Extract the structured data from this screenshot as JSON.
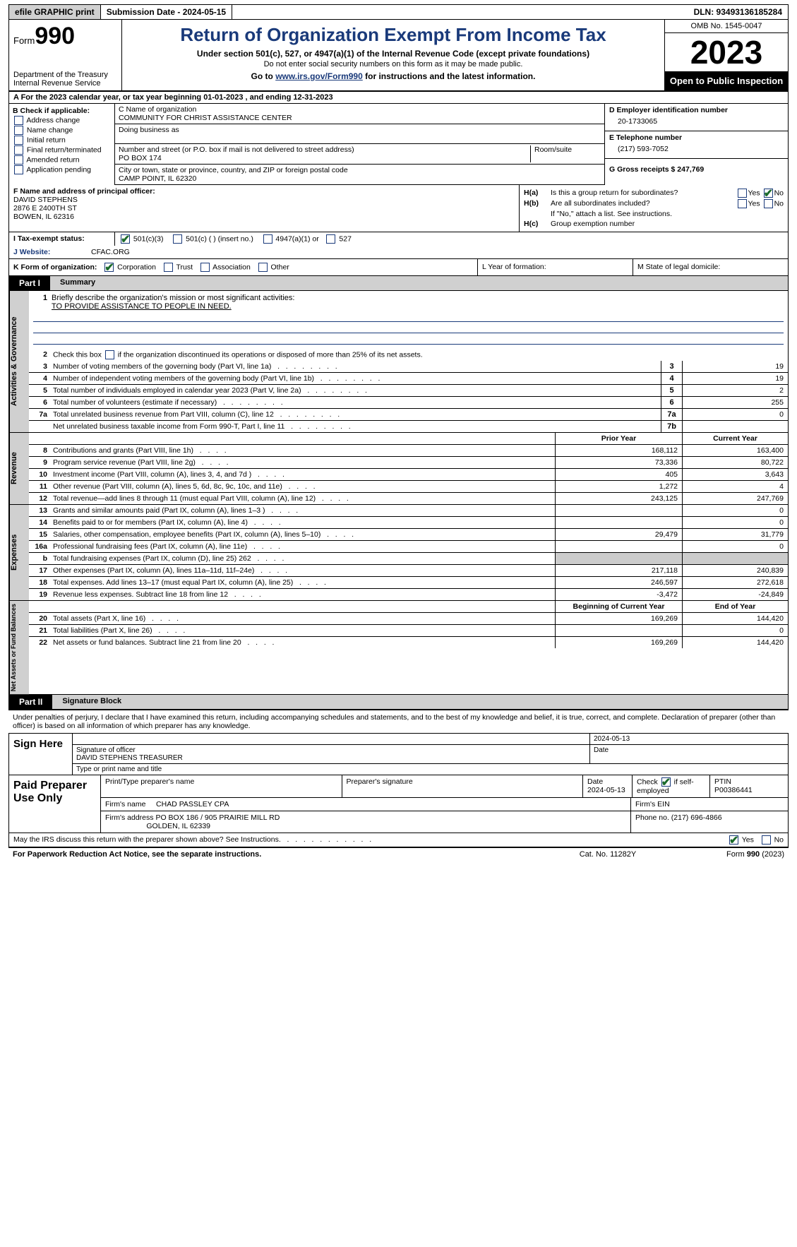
{
  "top": {
    "efile": "efile GRAPHIC print",
    "submission": "Submission Date - 2024-05-15",
    "dln": "DLN: 93493136185284"
  },
  "header": {
    "form_word": "Form",
    "form_num": "990",
    "title": "Return of Organization Exempt From Income Tax",
    "subtitle1": "Under section 501(c), 527, or 4947(a)(1) of the Internal Revenue Code (except private foundations)",
    "subtitle2": "Do not enter social security numbers on this form as it may be made public.",
    "subtitle3_a": "Go to ",
    "subtitle3_link": "www.irs.gov/Form990",
    "subtitle3_b": " for instructions and the latest information.",
    "dept": "Department of the Treasury",
    "irs": "Internal Revenue Service",
    "omb": "OMB No. 1545-0047",
    "year": "2023",
    "open": "Open to Public Inspection"
  },
  "lineA": "A For the 2023 calendar year, or tax year beginning 01-01-2023   , and ending 12-31-2023",
  "B": {
    "label": "B Check if applicable:",
    "items": [
      "Address change",
      "Name change",
      "Initial return",
      "Final return/terminated",
      "Amended return",
      "Application pending"
    ]
  },
  "C": {
    "name_lbl": "C Name of organization",
    "name": "COMMUNITY FOR CHRIST ASSISTANCE CENTER",
    "dba_lbl": "Doing business as",
    "addr_lbl": "Number and street (or P.O. box if mail is not delivered to street address)",
    "addr": "PO BOX 174",
    "suite_lbl": "Room/suite",
    "city_lbl": "City or town, state or province, country, and ZIP or foreign postal code",
    "city": "CAMP POINT, IL  62320"
  },
  "D": {
    "lbl": "D Employer identification number",
    "val": "20-1733065"
  },
  "E": {
    "lbl": "E Telephone number",
    "val": "(217) 593-7052"
  },
  "G": {
    "lbl": "G Gross receipts $ 247,769"
  },
  "F": {
    "lbl": "F  Name and address of principal officer:",
    "name": "DAVID STEPHENS",
    "addr1": "2876 E 2400TH ST",
    "addr2": "BOWEN, IL  62316"
  },
  "H": {
    "a_lbl": "H(a)",
    "a_txt": "Is this a group return for subordinates?",
    "b_lbl": "H(b)",
    "b_txt": "Are all subordinates included?",
    "b_note": "If \"No,\" attach a list. See instructions.",
    "c_lbl": "H(c)",
    "c_txt": "Group exemption number",
    "yes": "Yes",
    "no": "No"
  },
  "I": {
    "lbl": "I   Tax-exempt status:",
    "opts": [
      "501(c)(3)",
      "501(c) (  ) (insert no.)",
      "4947(a)(1) or",
      "527"
    ]
  },
  "J": {
    "lbl": "J   Website:",
    "val": "CFAC.ORG"
  },
  "K": {
    "lbl": "K Form of organization:",
    "opts": [
      "Corporation",
      "Trust",
      "Association",
      "Other"
    ]
  },
  "L": "L Year of formation:",
  "M": "M State of legal domicile:",
  "part1": {
    "num": "Part I",
    "title": "Summary"
  },
  "vtabs": {
    "ag": "Activities & Governance",
    "rev": "Revenue",
    "exp": "Expenses",
    "na": "Net Assets or Fund Balances"
  },
  "q1": {
    "n": "1",
    "t": "Briefly describe the organization's mission or most significant activities:",
    "v": "TO PROVIDE ASSISTANCE TO PEOPLE IN NEED."
  },
  "rows_ag": [
    {
      "n": "2",
      "t": "Check this box    if the organization discontinued its operations or disposed of more than 25% of its net assets."
    },
    {
      "n": "3",
      "t": "Number of voting members of the governing body (Part VI, line 1a)",
      "box": "3",
      "v": "19"
    },
    {
      "n": "4",
      "t": "Number of independent voting members of the governing body (Part VI, line 1b)",
      "box": "4",
      "v": "19"
    },
    {
      "n": "5",
      "t": "Total number of individuals employed in calendar year 2023 (Part V, line 2a)",
      "box": "5",
      "v": "2"
    },
    {
      "n": "6",
      "t": "Total number of volunteers (estimate if necessary)",
      "box": "6",
      "v": "255"
    },
    {
      "n": "7a",
      "t": "Total unrelated business revenue from Part VIII, column (C), line 12",
      "box": "7a",
      "v": "0"
    },
    {
      "n": "",
      "t": "Net unrelated business taxable income from Form 990-T, Part I, line 11",
      "box": "7b",
      "v": ""
    }
  ],
  "hdr_py": "Prior Year",
  "hdr_cy": "Current Year",
  "rows_rev": [
    {
      "n": "8",
      "t": "Contributions and grants (Part VIII, line 1h)",
      "py": "168,112",
      "cy": "163,400"
    },
    {
      "n": "9",
      "t": "Program service revenue (Part VIII, line 2g)",
      "py": "73,336",
      "cy": "80,722"
    },
    {
      "n": "10",
      "t": "Investment income (Part VIII, column (A), lines 3, 4, and 7d )",
      "py": "405",
      "cy": "3,643"
    },
    {
      "n": "11",
      "t": "Other revenue (Part VIII, column (A), lines 5, 6d, 8c, 9c, 10c, and 11e)",
      "py": "1,272",
      "cy": "4"
    },
    {
      "n": "12",
      "t": "Total revenue—add lines 8 through 11 (must equal Part VIII, column (A), line 12)",
      "py": "243,125",
      "cy": "247,769"
    }
  ],
  "rows_exp": [
    {
      "n": "13",
      "t": "Grants and similar amounts paid (Part IX, column (A), lines 1–3 )",
      "py": "",
      "cy": "0"
    },
    {
      "n": "14",
      "t": "Benefits paid to or for members (Part IX, column (A), line 4)",
      "py": "",
      "cy": "0"
    },
    {
      "n": "15",
      "t": "Salaries, other compensation, employee benefits (Part IX, column (A), lines 5–10)",
      "py": "29,479",
      "cy": "31,779"
    },
    {
      "n": "16a",
      "t": "Professional fundraising fees (Part IX, column (A), line 11e)",
      "py": "",
      "cy": "0"
    },
    {
      "n": "b",
      "t": "Total fundraising expenses (Part IX, column (D), line 25) 262",
      "py": "gray",
      "cy": "gray"
    },
    {
      "n": "17",
      "t": "Other expenses (Part IX, column (A), lines 11a–11d, 11f–24e)",
      "py": "217,118",
      "cy": "240,839"
    },
    {
      "n": "18",
      "t": "Total expenses. Add lines 13–17 (must equal Part IX, column (A), line 25)",
      "py": "246,597",
      "cy": "272,618"
    },
    {
      "n": "19",
      "t": "Revenue less expenses. Subtract line 18 from line 12",
      "py": "-3,472",
      "cy": "-24,849"
    }
  ],
  "hdr_bcy": "Beginning of Current Year",
  "hdr_ey": "End of Year",
  "rows_na": [
    {
      "n": "20",
      "t": "Total assets (Part X, line 16)",
      "py": "169,269",
      "cy": "144,420"
    },
    {
      "n": "21",
      "t": "Total liabilities (Part X, line 26)",
      "py": "",
      "cy": "0"
    },
    {
      "n": "22",
      "t": "Net assets or fund balances. Subtract line 21 from line 20",
      "py": "169,269",
      "cy": "144,420"
    }
  ],
  "part2": {
    "num": "Part II",
    "title": "Signature Block"
  },
  "sig": {
    "decl": "Under penalties of perjury, I declare that I have examined this return, including accompanying schedules and statements, and to the best of my knowledge and belief, it is true, correct, and complete. Declaration of preparer (other than officer) is based on all information of which preparer has any knowledge.",
    "sign_here": "Sign Here",
    "date": "2024-05-13",
    "sig_lbl": "Signature of officer",
    "officer": "DAVID STEPHENS  TREASURER",
    "type_lbl": "Type or print name and title",
    "date_lbl": "Date"
  },
  "paid": {
    "title": "Paid Preparer Use Only",
    "h1": "Print/Type preparer's name",
    "h2": "Preparer's signature",
    "h3": "Date",
    "h3v": "2024-05-13",
    "h4a": "Check",
    "h4b": "if self-employed",
    "h5": "PTIN",
    "h5v": "P00386441",
    "firm_lbl": "Firm's name",
    "firm": "CHAD PASSLEY CPA",
    "ein_lbl": "Firm's EIN",
    "addr_lbl": "Firm's address",
    "addr1": "PO BOX 186 / 905 PRAIRIE MILL RD",
    "addr2": "GOLDEN, IL  62339",
    "phone_lbl": "Phone no. (217) 696-4866"
  },
  "discuss": {
    "txt": "May the IRS discuss this return with the preparer shown above? See Instructions.",
    "yes": "Yes",
    "no": "No"
  },
  "footer": {
    "left": "For Paperwork Reduction Act Notice, see the separate instructions.",
    "mid": "Cat. No. 11282Y",
    "right_a": "Form ",
    "right_b": "990",
    "right_c": " (2023)"
  }
}
